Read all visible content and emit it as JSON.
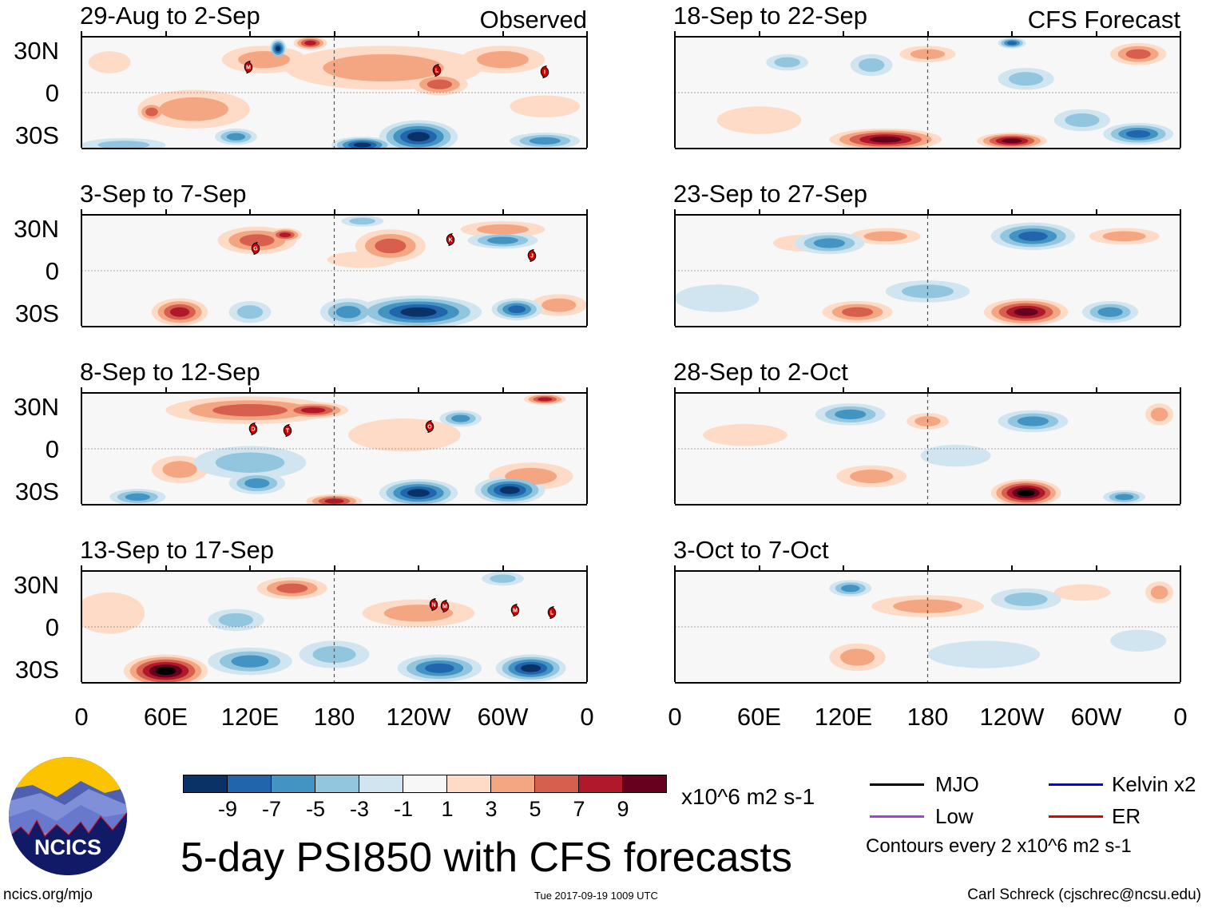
{
  "panels": [
    {
      "title": "29-Aug to 2-Sep",
      "tag": "Observed",
      "storms": [
        {
          "id": "M",
          "lon": 119,
          "lat": 19
        },
        {
          "id": "L",
          "lon": 253,
          "lat": 17
        },
        {
          "id": "I",
          "lon": 330,
          "lat": 16
        }
      ]
    },
    {
      "title": "3-Sep to 7-Sep",
      "storms": [
        {
          "id": "G",
          "lon": 124,
          "lat": 17
        },
        {
          "id": "K",
          "lon": 263,
          "lat": 23
        },
        {
          "id": "J",
          "lon": 321,
          "lat": 12
        }
      ]
    },
    {
      "title": "8-Sep to 12-Sep",
      "storms": [
        {
          "id": "D",
          "lon": 122,
          "lat": 15
        },
        {
          "id": "T",
          "lon": 147,
          "lat": 14
        },
        {
          "id": "O",
          "lon": 248,
          "lat": 17
        }
      ]
    },
    {
      "title": "13-Sep to 17-Sep",
      "storms": [
        {
          "id": "N",
          "lon": 251,
          "lat": 17
        },
        {
          "id": "M",
          "lon": 259,
          "lat": 16
        },
        {
          "id": "M",
          "lon": 309,
          "lat": 13
        },
        {
          "id": "L",
          "lon": 335,
          "lat": 11
        }
      ]
    },
    {
      "title": "18-Sep to 22-Sep",
      "tag": "CFS Forecast",
      "storms": []
    },
    {
      "title": "23-Sep to 27-Sep",
      "storms": []
    },
    {
      "title": "28-Sep to 2-Oct",
      "storms": []
    },
    {
      "title": "3-Oct to 7-Oct",
      "storms": []
    }
  ],
  "lat_labels": [
    "30N",
    "0",
    "30S"
  ],
  "lon_labels": [
    "0",
    "60E",
    "120E",
    "180",
    "120W",
    "60W",
    "0"
  ],
  "colorbar": {
    "colors": [
      "#0a3266",
      "#2166ac",
      "#4393c3",
      "#92c5de",
      "#d1e5f0",
      "#f7f7f7",
      "#fddbc7",
      "#f4a582",
      "#d6604d",
      "#b2182b",
      "#67001f"
    ],
    "labels": [
      "-9",
      "-7",
      "-5",
      "-3",
      "-1",
      "1",
      "3",
      "5",
      "7",
      "9"
    ],
    "units": "x10^6 m2 s-1"
  },
  "title": "5-day PSI850 with CFS forecasts",
  "legend": {
    "items": [
      {
        "label": "MJO",
        "color": "#000000"
      },
      {
        "label": "Kelvin x2",
        "color": "#0000ff"
      },
      {
        "label": "Low",
        "color": "#a040e0"
      },
      {
        "label": "ER",
        "color": "#e00000"
      }
    ],
    "contours": "Contours every 2 x10^6 m2 s-1"
  },
  "logo": {
    "text": "NCICS"
  },
  "footer": {
    "url": "ncics.org/mjo",
    "timestamp": "Tue 2017-09-19 1009 UTC",
    "credit": "Carl Schreck (cjschrec@ncsu.edu)"
  }
}
